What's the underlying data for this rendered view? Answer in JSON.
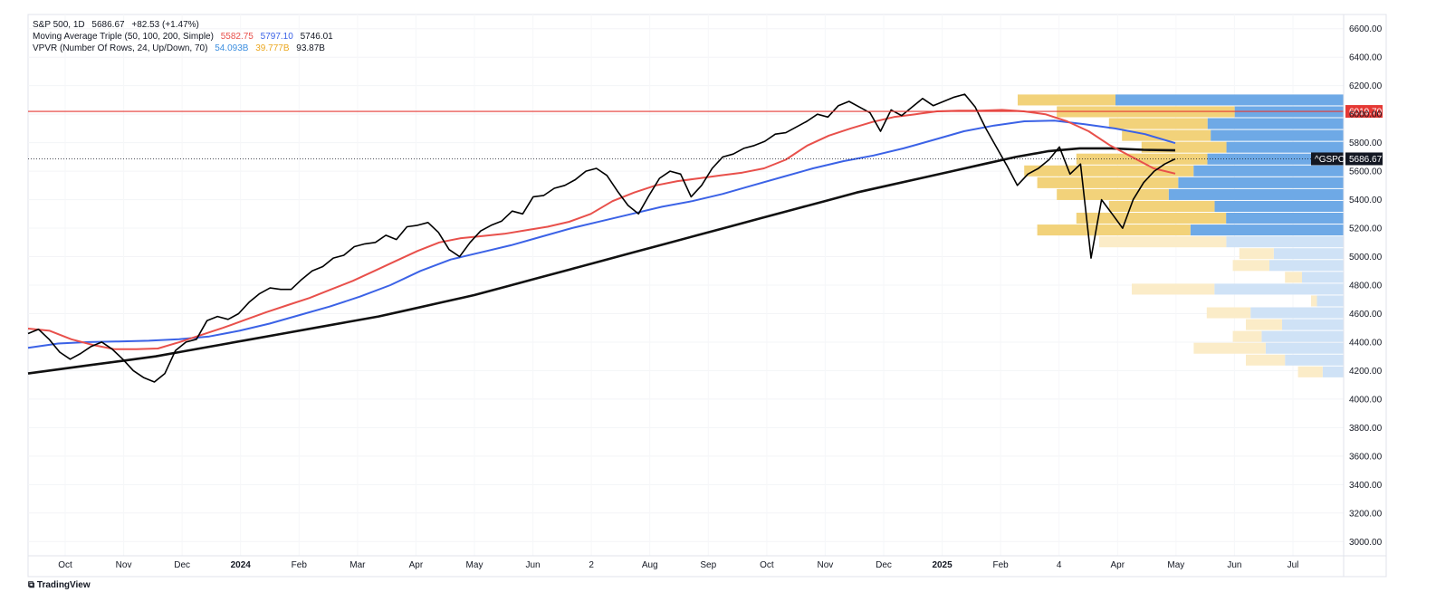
{
  "legend": {
    "main": {
      "symbol": "S&P 500, 1D",
      "price": "5686.67",
      "change": "+82.53 (+1.47%)"
    },
    "ma": {
      "label": "Moving Average Triple (50, 100, 200, Simple)",
      "v1": "5582.75",
      "v2": "5797.10",
      "v3": "5746.01"
    },
    "vpvr": {
      "label": "VPVR (Number Of Rows, 24, Up/Down, 70)",
      "v1": "54.093B",
      "v2": "39.777B",
      "v3": "93.87B"
    }
  },
  "brand": "TradingView",
  "colors": {
    "price": "#000000",
    "ma50": "#e8504b",
    "ma100": "#3b62e6",
    "ma200": "#111111",
    "hline": "#e53935",
    "vp_up": "#f2d27a",
    "vp_down": "#6ea9e6",
    "vp_up_light": "#fbecc8",
    "vp_down_light": "#cfe2f6"
  },
  "chart_data": {
    "type": "line",
    "ylim": [
      2900,
      6700
    ],
    "y_ticks": [
      "6600.00",
      "6400.00",
      "6200.00",
      "6000.00",
      "5800.00",
      "5600.00",
      "5400.00",
      "5200.00",
      "5000.00",
      "4800.00",
      "4600.00",
      "4400.00",
      "4200.00",
      "4000.00",
      "3800.00",
      "3600.00",
      "3400.00",
      "3200.00",
      "3000.00"
    ],
    "x_ticks": [
      {
        "label": "Oct",
        "bold": false
      },
      {
        "label": "Nov",
        "bold": false
      },
      {
        "label": "Dec",
        "bold": false
      },
      {
        "label": "2024",
        "bold": true
      },
      {
        "label": "Feb",
        "bold": false
      },
      {
        "label": "Mar",
        "bold": false
      },
      {
        "label": "Apr",
        "bold": false
      },
      {
        "label": "May",
        "bold": false
      },
      {
        "label": "Jun",
        "bold": false
      },
      {
        "label": "2",
        "bold": false
      },
      {
        "label": "Aug",
        "bold": false
      },
      {
        "label": "Sep",
        "bold": false
      },
      {
        "label": "Oct",
        "bold": false
      },
      {
        "label": "Nov",
        "bold": false
      },
      {
        "label": "Dec",
        "bold": false
      },
      {
        "label": "2025",
        "bold": true
      },
      {
        "label": "Feb",
        "bold": false
      },
      {
        "label": "4",
        "bold": false
      },
      {
        "label": "Apr",
        "bold": false
      },
      {
        "label": "May",
        "bold": false
      },
      {
        "label": "Jun",
        "bold": false
      },
      {
        "label": "Jul",
        "bold": false
      }
    ],
    "horizontal_line": {
      "value": 6019.7,
      "label": "6019.70"
    },
    "last_price": {
      "value": 5686.67,
      "symbol": "^GSPC",
      "label": "5686.67"
    },
    "series": [
      {
        "name": "S&P 500",
        "values": [
          4460,
          4490,
          4420,
          4330,
          4280,
          4320,
          4370,
          4400,
          4350,
          4280,
          4200,
          4150,
          4120,
          4180,
          4340,
          4400,
          4420,
          4550,
          4580,
          4560,
          4600,
          4680,
          4740,
          4780,
          4770,
          4770,
          4840,
          4900,
          4930,
          4990,
          5010,
          5070,
          5090,
          5100,
          5150,
          5120,
          5210,
          5220,
          5240,
          5170,
          5050,
          5000,
          5100,
          5180,
          5220,
          5250,
          5320,
          5300,
          5420,
          5430,
          5480,
          5500,
          5540,
          5600,
          5620,
          5570,
          5460,
          5360,
          5300,
          5430,
          5550,
          5600,
          5580,
          5420,
          5500,
          5620,
          5700,
          5720,
          5760,
          5780,
          5810,
          5860,
          5870,
          5910,
          5950,
          6000,
          5980,
          6060,
          6090,
          6050,
          6010,
          5880,
          6030,
          5990,
          6050,
          6110,
          6060,
          6090,
          6120,
          6140,
          6050,
          5900,
          5770,
          5640,
          5500,
          5580,
          5620,
          5680,
          5770,
          5580,
          5650,
          4990,
          5400,
          5300,
          5200,
          5400,
          5520,
          5600,
          5650,
          5686.67
        ]
      },
      {
        "name": "MA 50",
        "values": [
          4495,
          4480,
          4420,
          4380,
          4350,
          4350,
          4355,
          4400,
          4450,
          4500,
          4555,
          4610,
          4660,
          4710,
          4770,
          4830,
          4900,
          4970,
          5040,
          5100,
          5130,
          5145,
          5160,
          5185,
          5210,
          5245,
          5300,
          5390,
          5450,
          5500,
          5530,
          5550,
          5570,
          5590,
          5620,
          5680,
          5780,
          5850,
          5900,
          5945,
          5980,
          6000,
          6020,
          6025,
          6025,
          6030,
          6020,
          6000,
          5950,
          5880,
          5780,
          5700,
          5620,
          5582.75
        ]
      },
      {
        "name": "MA 100",
        "values": [
          4360,
          4390,
          4400,
          4405,
          4410,
          4420,
          4440,
          4480,
          4530,
          4590,
          4650,
          4720,
          4800,
          4900,
          4980,
          5030,
          5080,
          5140,
          5200,
          5250,
          5300,
          5350,
          5390,
          5440,
          5500,
          5560,
          5620,
          5670,
          5710,
          5760,
          5820,
          5880,
          5920,
          5950,
          5955,
          5930,
          5900,
          5860,
          5797.1
        ]
      },
      {
        "name": "MA 200",
        "values": [
          4180,
          4210,
          4240,
          4270,
          4300,
          4340,
          4380,
          4420,
          4460,
          4500,
          4540,
          4580,
          4630,
          4680,
          4730,
          4790,
          4850,
          4910,
          4970,
          5030,
          5090,
          5150,
          5210,
          5270,
          5330,
          5390,
          5450,
          5500,
          5550,
          5600,
          5650,
          5700,
          5740,
          5760,
          5760,
          5750,
          5746.01
        ]
      }
    ],
    "volume_profile": [
      {
        "price": 6100,
        "up": 0.3,
        "down": 0.7,
        "hl": false
      },
      {
        "price": 6017,
        "up": 0.62,
        "down": 0.38,
        "hl": false
      },
      {
        "price": 5934,
        "up": 0.42,
        "down": 0.58,
        "hl": false
      },
      {
        "price": 5851,
        "up": 0.4,
        "down": 0.6,
        "hl": false
      },
      {
        "price": 5768,
        "up": 0.42,
        "down": 0.58,
        "hl": false
      },
      {
        "price": 5685,
        "up": 0.49,
        "down": 0.51,
        "hl": false
      },
      {
        "price": 5602,
        "up": 0.53,
        "down": 0.47,
        "hl": false
      },
      {
        "price": 5519,
        "up": 0.46,
        "down": 0.54,
        "hl": false
      },
      {
        "price": 5436,
        "up": 0.39,
        "down": 0.61,
        "hl": false
      },
      {
        "price": 5353,
        "up": 0.45,
        "down": 0.55,
        "hl": false
      },
      {
        "price": 5270,
        "up": 0.56,
        "down": 0.44,
        "hl": false
      },
      {
        "price": 5187,
        "up": 0.5,
        "down": 0.5,
        "hl": false
      },
      {
        "price": 5104,
        "up": 0.52,
        "down": 0.48,
        "hl": true
      },
      {
        "price": 5021,
        "up": 0.33,
        "down": 0.67,
        "hl": true
      },
      {
        "price": 4938,
        "up": 0.33,
        "down": 0.67,
        "hl": true
      },
      {
        "price": 4855,
        "up": 0.29,
        "down": 0.71,
        "hl": true
      },
      {
        "price": 4772,
        "up": 0.39,
        "down": 0.61,
        "hl": true
      },
      {
        "price": 4689,
        "up": 0.18,
        "down": 0.82,
        "hl": true
      },
      {
        "price": 4606,
        "up": 0.32,
        "down": 0.68,
        "hl": true
      },
      {
        "price": 4523,
        "up": 0.37,
        "down": 0.63,
        "hl": true
      },
      {
        "price": 4440,
        "up": 0.26,
        "down": 0.74,
        "hl": true
      },
      {
        "price": 4357,
        "up": 0.48,
        "down": 0.52,
        "hl": true
      },
      {
        "price": 4274,
        "up": 0.4,
        "down": 0.6,
        "hl": true
      },
      {
        "price": 4191,
        "up": 0.54,
        "down": 0.46,
        "hl": true
      }
    ]
  }
}
